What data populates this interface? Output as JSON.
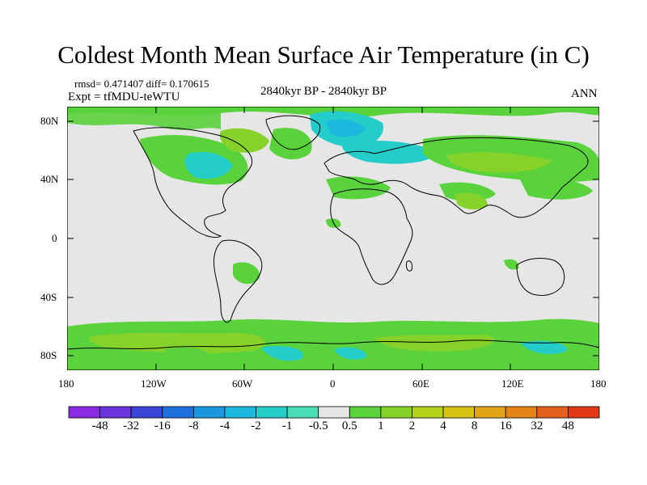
{
  "title": "Coldest Month Mean Surface Air Temperature (in C)",
  "stats_line": "rmsd= 0.471407 diff= 0.170615",
  "expt_line": "Expt = tfMDU-teWTU",
  "period_line": "2840kyr BP - 2840kyr BP",
  "season_label": "ANN",
  "lat_ticks": [
    "80N",
    "40N",
    "0",
    "40S",
    "80S"
  ],
  "lon_ticks": [
    "180",
    "120W",
    "60W",
    "0",
    "60E",
    "120E",
    "180"
  ],
  "colorbar": {
    "colors": [
      "#8a2be2",
      "#6a35dd",
      "#3a45d6",
      "#1f6fdc",
      "#1c96df",
      "#1ab9dd",
      "#24cdc9",
      "#4adcb6",
      "#e6e6e6",
      "#5ad23c",
      "#86d22a",
      "#b2d21c",
      "#d6c414",
      "#e0a414",
      "#e48418",
      "#e4601c",
      "#e03818"
    ],
    "labels": [
      "-48",
      "-32",
      "-16",
      "-8",
      "-4",
      "-2",
      "-1",
      "-0.5",
      "0.5",
      "1",
      "2",
      "4",
      "8",
      "16",
      "32",
      "48"
    ]
  }
}
